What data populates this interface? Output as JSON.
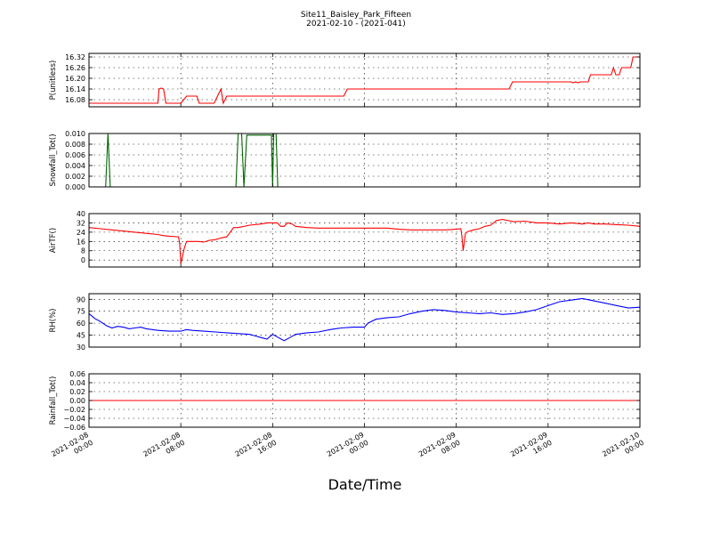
{
  "figure": {
    "title": "Site11_Baisley_Park_Fifteen",
    "subtitle": "2021-02-10 - (2021-041)",
    "xlabel": "Date/Time",
    "x_ticks": [
      [
        "2021-02-08",
        "00:00"
      ],
      [
        "2021-02-08",
        "08:00"
      ],
      [
        "2021-02-08",
        "16:00"
      ],
      [
        "2021-02-09",
        "00:00"
      ],
      [
        "2021-02-09",
        "08:00"
      ],
      [
        "2021-02-09",
        "16:00"
      ],
      [
        "2021-02-10",
        "00:00"
      ]
    ],
    "background": "#ffffff"
  },
  "chart_data": [
    {
      "type": "line",
      "ylabel": "P(unitless)",
      "color": "#ff0000",
      "x_unit": "hours since 2021-02-08 00:00",
      "xlim": [
        "2021-02-08 00:00",
        "2021-02-10 00:00"
      ],
      "ylim": [
        16.04,
        16.34
      ],
      "yticks": [
        "16.08",
        "16.14",
        "16.20",
        "16.26",
        "16.32"
      ],
      "grid": true,
      "points": [
        [
          0,
          16.06
        ],
        [
          6,
          16.06
        ],
        [
          6.1,
          16.14
        ],
        [
          6.3,
          16.145
        ],
        [
          6.5,
          16.14
        ],
        [
          6.7,
          16.06
        ],
        [
          8.0,
          16.06
        ],
        [
          8.5,
          16.1
        ],
        [
          9.4,
          16.1
        ],
        [
          9.6,
          16.06
        ],
        [
          10.9,
          16.06
        ],
        [
          11.2,
          16.1
        ],
        [
          11.5,
          16.14
        ],
        [
          11.7,
          16.06
        ],
        [
          12.0,
          16.1
        ],
        [
          22.2,
          16.1
        ],
        [
          22.5,
          16.14
        ],
        [
          36.6,
          16.14
        ],
        [
          36.9,
          16.18
        ],
        [
          42.0,
          16.18
        ],
        [
          42.2,
          16.175
        ],
        [
          42.4,
          16.18
        ],
        [
          42.6,
          16.175
        ],
        [
          42.8,
          16.18
        ],
        [
          43.5,
          16.18
        ],
        [
          43.7,
          16.22
        ],
        [
          45.5,
          16.22
        ],
        [
          45.7,
          16.26
        ],
        [
          45.9,
          16.22
        ],
        [
          46.2,
          16.22
        ],
        [
          46.4,
          16.26
        ],
        [
          47.2,
          16.26
        ],
        [
          47.4,
          16.32
        ],
        [
          48,
          16.32
        ]
      ]
    },
    {
      "type": "line",
      "ylabel": "Snowfall_Tot()",
      "color": "#006400",
      "x_unit": "hours since 2021-02-08 00:00",
      "xlim": [
        "2021-02-08 00:00",
        "2021-02-10 00:00"
      ],
      "ylim": [
        0,
        0.01
      ],
      "yticks": [
        "0.000",
        "0.002",
        "0.004",
        "0.006",
        "0.008",
        "0.010"
      ],
      "grid": true,
      "points": [
        [
          0,
          0
        ],
        [
          1.45,
          0
        ],
        [
          1.65,
          0.01
        ],
        [
          1.85,
          0
        ],
        [
          12.8,
          0
        ],
        [
          13.0,
          0.01
        ],
        [
          13.3,
          0.01
        ],
        [
          13.5,
          0
        ],
        [
          13.75,
          0.0097
        ],
        [
          15.9,
          0.0097
        ],
        [
          16.0,
          0
        ],
        [
          16.1,
          0.01
        ],
        [
          16.3,
          0.01
        ],
        [
          16.45,
          0
        ],
        [
          48,
          0
        ]
      ]
    },
    {
      "type": "line",
      "ylabel": "AirTF()",
      "color": "#ff0000",
      "x_unit": "hours since 2021-02-08 00:00",
      "xlim": [
        "2021-02-08 00:00",
        "2021-02-10 00:00"
      ],
      "ylim": [
        -6,
        40
      ],
      "yticks": [
        "0",
        "8",
        "16",
        "24",
        "32",
        "40"
      ],
      "grid": true,
      "points": [
        [
          0,
          28
        ],
        [
          1,
          27
        ],
        [
          2,
          26
        ],
        [
          3,
          25
        ],
        [
          4,
          24
        ],
        [
          5,
          23
        ],
        [
          6,
          22
        ],
        [
          6.5,
          21
        ],
        [
          7,
          20.5
        ],
        [
          7.8,
          20
        ],
        [
          7.9,
          14
        ],
        [
          8.0,
          -3
        ],
        [
          8.3,
          10
        ],
        [
          8.5,
          16
        ],
        [
          9.5,
          16
        ],
        [
          10,
          15.5
        ],
        [
          10.5,
          17
        ],
        [
          11,
          17.5
        ],
        [
          11.5,
          19
        ],
        [
          12,
          20
        ],
        [
          12.3,
          24
        ],
        [
          12.6,
          28
        ],
        [
          13,
          28
        ],
        [
          14,
          30
        ],
        [
          15,
          31
        ],
        [
          15.5,
          32
        ],
        [
          16,
          32
        ],
        [
          16.4,
          32
        ],
        [
          16.7,
          29
        ],
        [
          17,
          29
        ],
        [
          17.3,
          32
        ],
        [
          17.7,
          31
        ],
        [
          18,
          29
        ],
        [
          19,
          28
        ],
        [
          20,
          27.5
        ],
        [
          24,
          27.5
        ],
        [
          26,
          27.5
        ],
        [
          27,
          26.5
        ],
        [
          28,
          26
        ],
        [
          31,
          26
        ],
        [
          32,
          26.5
        ],
        [
          32.4,
          27
        ],
        [
          32.5,
          20
        ],
        [
          32.6,
          8
        ],
        [
          32.8,
          23
        ],
        [
          33,
          24.5
        ],
        [
          33.5,
          26
        ],
        [
          34,
          27
        ],
        [
          34.5,
          29
        ],
        [
          35,
          30
        ],
        [
          35.5,
          34
        ],
        [
          36,
          35
        ],
        [
          37,
          33
        ],
        [
          38,
          33.5
        ],
        [
          39,
          32
        ],
        [
          40,
          32
        ],
        [
          41,
          31
        ],
        [
          42,
          32
        ],
        [
          43,
          31
        ],
        [
          43.5,
          32
        ],
        [
          44,
          31
        ],
        [
          45,
          31
        ],
        [
          46,
          30.5
        ],
        [
          47,
          30
        ],
        [
          48,
          29
        ]
      ]
    },
    {
      "type": "line",
      "ylabel": "RH(%)",
      "color": "#0000ff",
      "x_unit": "hours since 2021-02-08 00:00",
      "xlim": [
        "2021-02-08 00:00",
        "2021-02-10 00:00"
      ],
      "ylim": [
        30,
        97
      ],
      "yticks": [
        "30",
        "45",
        "60",
        "75",
        "90"
      ],
      "grid": true,
      "points": [
        [
          0,
          72
        ],
        [
          0.5,
          66
        ],
        [
          1,
          62
        ],
        [
          1.5,
          57
        ],
        [
          2,
          54
        ],
        [
          2.5,
          56
        ],
        [
          3,
          55
        ],
        [
          3.5,
          53
        ],
        [
          4,
          54
        ],
        [
          4.5,
          55
        ],
        [
          5,
          53
        ],
        [
          6,
          51
        ],
        [
          7,
          50
        ],
        [
          8,
          50
        ],
        [
          8.5,
          52
        ],
        [
          9,
          51
        ],
        [
          10,
          50
        ],
        [
          11,
          49
        ],
        [
          12,
          48
        ],
        [
          13,
          47
        ],
        [
          14,
          46
        ],
        [
          14.5,
          44
        ],
        [
          15,
          42
        ],
        [
          15.5,
          40
        ],
        [
          16,
          46
        ],
        [
          16.5,
          42
        ],
        [
          17,
          38
        ],
        [
          17.5,
          42
        ],
        [
          18,
          46
        ],
        [
          19,
          48
        ],
        [
          20,
          49
        ],
        [
          21,
          52
        ],
        [
          22,
          54
        ],
        [
          23,
          55
        ],
        [
          24,
          55
        ],
        [
          24.3,
          60
        ],
        [
          25,
          65
        ],
        [
          26,
          67
        ],
        [
          27,
          68
        ],
        [
          28,
          72
        ],
        [
          29,
          75
        ],
        [
          30,
          77
        ],
        [
          31,
          76
        ],
        [
          32,
          74
        ],
        [
          33,
          73
        ],
        [
          34,
          72
        ],
        [
          35,
          73
        ],
        [
          36,
          71
        ],
        [
          37,
          72
        ],
        [
          38,
          74
        ],
        [
          39,
          77
        ],
        [
          40,
          82
        ],
        [
          41,
          87
        ],
        [
          42,
          89
        ],
        [
          43,
          91
        ],
        [
          44,
          88
        ],
        [
          45,
          85
        ],
        [
          46,
          82
        ],
        [
          47,
          79
        ],
        [
          48,
          80
        ]
      ]
    },
    {
      "type": "line",
      "ylabel": "Rainfall_Tot()",
      "color": "#ff0000",
      "x_unit": "hours since 2021-02-08 00:00",
      "xlim": [
        "2021-02-08 00:00",
        "2021-02-10 00:00"
      ],
      "ylim": [
        -0.06,
        0.06
      ],
      "yticks": [
        "−0.06",
        "−0.04",
        "−0.02",
        "0.00",
        "0.02",
        "0.04",
        "0.06"
      ],
      "grid": true,
      "points": [
        [
          0,
          0
        ],
        [
          48,
          0
        ]
      ]
    }
  ]
}
